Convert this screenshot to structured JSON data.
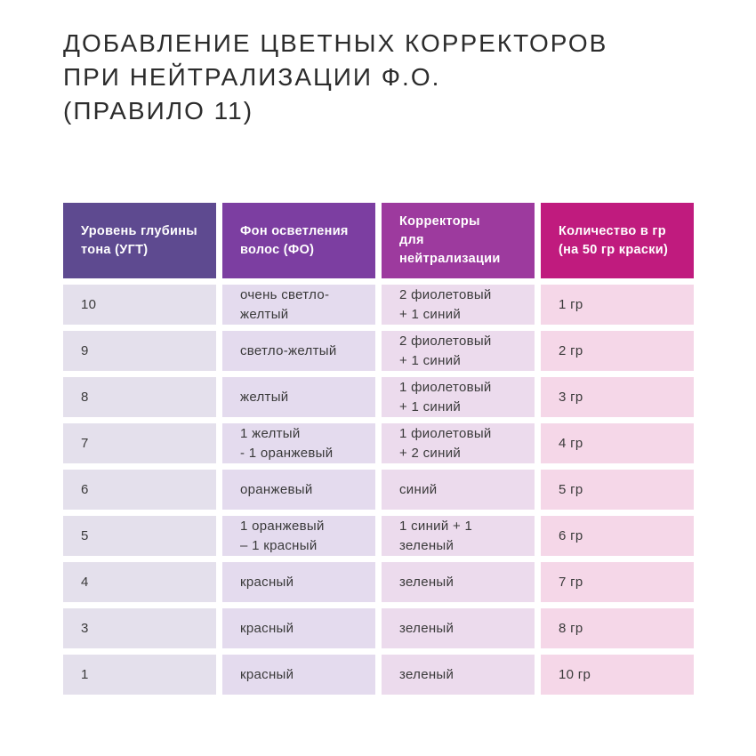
{
  "page": {
    "title": "ДОБАВЛЕНИЕ ЦВЕТНЫХ КОРРЕКТОРОВ\nПРИ НЕЙТРАЛИЗАЦИИ Ф.О.\n(ПРАВИЛО 11)"
  },
  "colors": {
    "header_ugt": "#5e4a90",
    "header_fo": "#7c3ea1",
    "header_correctors": "#9d3a9e",
    "header_amount": "#c01b7e",
    "cell_ugt": "#e4e0ec",
    "cell_fo": "#e4dbee",
    "cell_correctors": "#ecdbed",
    "cell_amount": "#f5d7e8",
    "header_text": "#ffffff",
    "body_text": "#3a3a3a",
    "title_text": "#2c2c2c"
  },
  "table": {
    "columns": [
      {
        "id": "ugt",
        "label": "Уровень глубины\nтона (УГТ)"
      },
      {
        "id": "fo",
        "label": "Фон осветления\nволос (ФО)"
      },
      {
        "id": "correctors",
        "label": "Корректоры\nдля нейтрализации"
      },
      {
        "id": "amount",
        "label": "Количество в гр\n(на 50 гр краски)"
      }
    ],
    "rows": [
      [
        "10",
        "очень светло-желтый",
        "2 фиолетовый\n+ 1 синий",
        "1 гр"
      ],
      [
        "9",
        "светло-желтый",
        "2 фиолетовый\n+ 1 синий",
        "2 гр"
      ],
      [
        "8",
        "желтый",
        "1 фиолетовый\n+ 1 синий",
        "3 гр"
      ],
      [
        "7",
        "1 желтый\n- 1 оранжевый",
        "1 фиолетовый\n+ 2 синий",
        "4 гр"
      ],
      [
        "6",
        "оранжевый",
        "синий",
        "5 гр"
      ],
      [
        "5",
        "1 оранжевый\n– 1 красный",
        "1 синий + 1 зеленый",
        "6 гр"
      ],
      [
        "4",
        "красный",
        "зеленый",
        "7 гр"
      ],
      [
        "3",
        "красный",
        "зеленый",
        "8 гр"
      ],
      [
        "1",
        "красный",
        "зеленый",
        "10 гр"
      ]
    ]
  }
}
